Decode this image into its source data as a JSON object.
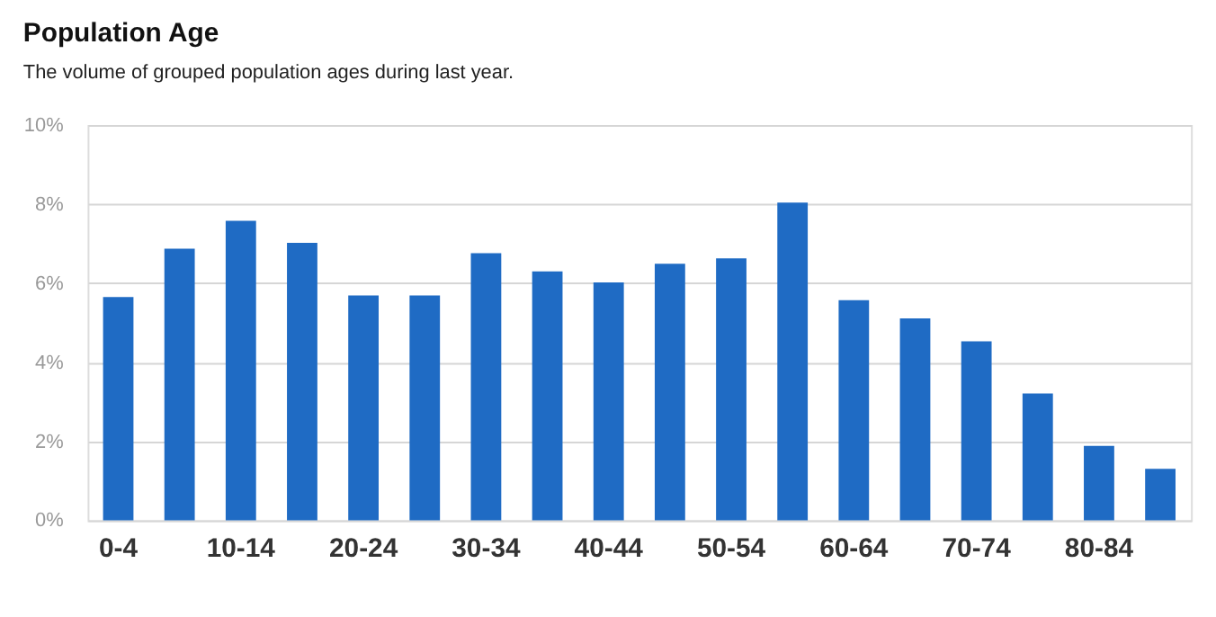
{
  "chart_data": {
    "type": "bar",
    "title": "Population Age",
    "subtitle": "The volume of grouped population ages during last year.",
    "categories": [
      "0-4",
      null,
      "10-14",
      null,
      "20-24",
      null,
      "30-34",
      null,
      "40-44",
      null,
      "50-54",
      null,
      "60-64",
      null,
      "70-74",
      null,
      "80-84",
      null
    ],
    "values": [
      5.65,
      6.87,
      7.58,
      7.02,
      5.69,
      5.69,
      6.76,
      6.3,
      6.02,
      6.49,
      6.63,
      8.04,
      5.57,
      5.11,
      4.53,
      3.21,
      1.88,
      1.3
    ],
    "color": "#1f6bc4",
    "ylim": [
      0,
      10
    ],
    "yticks": [
      {
        "value": 0,
        "label": "0%"
      },
      {
        "value": 2,
        "label": "2%"
      },
      {
        "value": 4,
        "label": "4%"
      },
      {
        "value": 6,
        "label": "6%"
      },
      {
        "value": 8,
        "label": "8%"
      },
      {
        "value": 10,
        "label": "10%"
      }
    ],
    "grid": "y"
  }
}
